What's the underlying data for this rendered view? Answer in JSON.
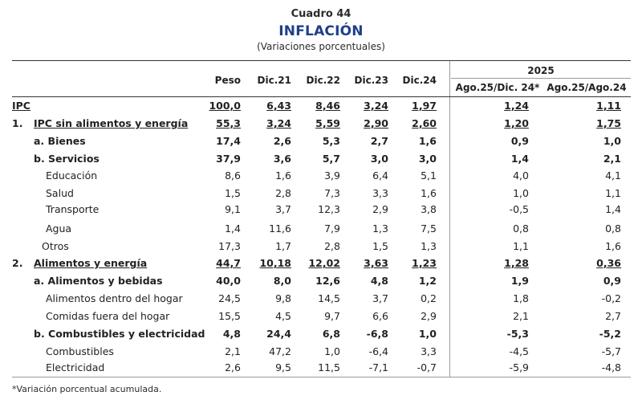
{
  "header": {
    "cuadro": "Cuadro 44",
    "title": "INFLACIÓN",
    "subtitle": "(Variaciones porcentuales)"
  },
  "columns": {
    "peso": "Peso",
    "dic21": "Dic.21",
    "dic22": "Dic.22",
    "dic23": "Dic.23",
    "dic24": "Dic.24",
    "year_group": "2025",
    "ago_dic": "Ago.25/Dic. 24*",
    "ago_ago": "Ago.25/Ago.24"
  },
  "rows": [
    {
      "num": "",
      "label": "IPC",
      "v": [
        "100,0",
        "6,43",
        "8,46",
        "3,24",
        "1,97",
        "1,24",
        "1,11"
      ]
    },
    {
      "num": "1.",
      "label": "IPC sin alimentos y energía",
      "v": [
        "55,3",
        "3,24",
        "5,59",
        "2,90",
        "2,60",
        "1,20",
        "1,75"
      ]
    },
    {
      "num": "",
      "label": "a. Bienes",
      "v": [
        "17,4",
        "2,6",
        "5,3",
        "2,7",
        "1,6",
        "0,9",
        "1,0"
      ]
    },
    {
      "num": "",
      "label": "b. Servicios",
      "v": [
        "37,9",
        "3,6",
        "5,7",
        "3,0",
        "3,0",
        "1,4",
        "2,1"
      ]
    },
    {
      "num": "",
      "label": "Educación",
      "v": [
        "8,6",
        "1,6",
        "3,9",
        "6,4",
        "5,1",
        "4,0",
        "4,1"
      ]
    },
    {
      "num": "",
      "label": "Salud",
      "v": [
        "1,5",
        "2,8",
        "7,3",
        "3,3",
        "1,6",
        "1,0",
        "1,1"
      ]
    },
    {
      "num": "",
      "label": "Transporte",
      "v": [
        "9,1",
        "3,7",
        "12,3",
        "2,9",
        "3,8",
        "-0,5",
        "1,4"
      ]
    },
    {
      "num": "",
      "label": "Agua",
      "v": [
        "1,4",
        "11,6",
        "7,9",
        "1,3",
        "7,5",
        "0,8",
        "0,8"
      ]
    },
    {
      "num": "",
      "label": "Otros",
      "v": [
        "17,3",
        "1,7",
        "2,8",
        "1,5",
        "1,3",
        "1,1",
        "1,6"
      ]
    },
    {
      "num": "2.",
      "label": "Alimentos y energía",
      "v": [
        "44,7",
        "10,18",
        "12,02",
        "3,63",
        "1,23",
        "1,28",
        "0,36"
      ]
    },
    {
      "num": "",
      "label": "a. Alimentos y bebidas",
      "v": [
        "40,0",
        "8,0",
        "12,6",
        "4,8",
        "1,2",
        "1,9",
        "0,9"
      ]
    },
    {
      "num": "",
      "label": "Alimentos dentro del hogar",
      "v": [
        "24,5",
        "9,8",
        "14,5",
        "3,7",
        "0,2",
        "1,8",
        "-0,2"
      ]
    },
    {
      "num": "",
      "label": "Comidas fuera del hogar",
      "v": [
        "15,5",
        "4,5",
        "9,7",
        "6,6",
        "2,9",
        "2,1",
        "2,7"
      ]
    },
    {
      "num": "",
      "label": "b. Combustibles y electricidad",
      "v": [
        "4,8",
        "24,4",
        "6,8",
        "-6,8",
        "1,0",
        "-5,3",
        "-5,2"
      ]
    },
    {
      "num": "",
      "label": "Combustibles",
      "v": [
        "2,1",
        "47,2",
        "1,0",
        "-6,4",
        "3,3",
        "-4,5",
        "-5,7"
      ]
    },
    {
      "num": "",
      "label": "Electricidad",
      "v": [
        "2,6",
        "9,5",
        "11,5",
        "-7,1",
        "-0,7",
        "-5,9",
        "-4,8"
      ]
    }
  ],
  "footnote": "*Variación porcentual acumulada."
}
